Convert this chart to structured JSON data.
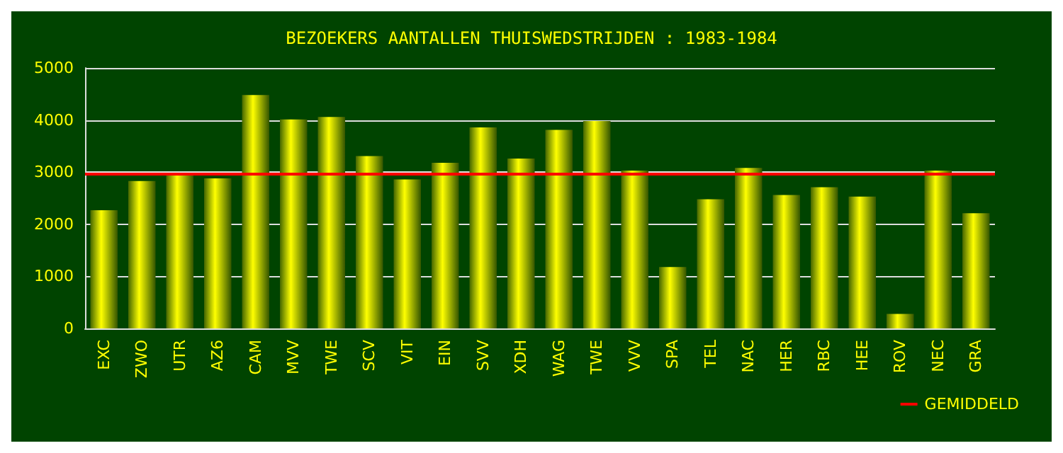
{
  "chart_data": {
    "type": "bar",
    "title": "BEZOEKERS AANTALLEN THUISWEDSTRIJDEN : 1983-1984",
    "categories": [
      "EXC",
      "ZWO",
      "UTR",
      "AZ6",
      "CAM",
      "MVV",
      "TWE",
      "SCV",
      "VIT",
      "EIN",
      "SVV",
      "XDH",
      "WAG",
      "TWE",
      "VVV",
      "SPA",
      "TEL",
      "NAC",
      "HER",
      "RBC",
      "HEE",
      "ROV",
      "NEC",
      "GRA"
    ],
    "values": [
      2270,
      2830,
      2970,
      2880,
      4480,
      4010,
      4060,
      3310,
      2860,
      3180,
      3860,
      3260,
      3810,
      3980,
      3030,
      1180,
      2480,
      3080,
      2560,
      2710,
      2530,
      280,
      3030,
      2210
    ],
    "color": "#ffff00",
    "ylim": [
      0,
      5000
    ],
    "yticks": [
      0,
      1000,
      2000,
      3000,
      4000,
      5000
    ],
    "grid": "y",
    "ref_lines": [
      {
        "axis": "y",
        "value": 2980,
        "label": "GEMIDDELD",
        "color": "#ff0000"
      }
    ],
    "legend": "bottom right"
  }
}
